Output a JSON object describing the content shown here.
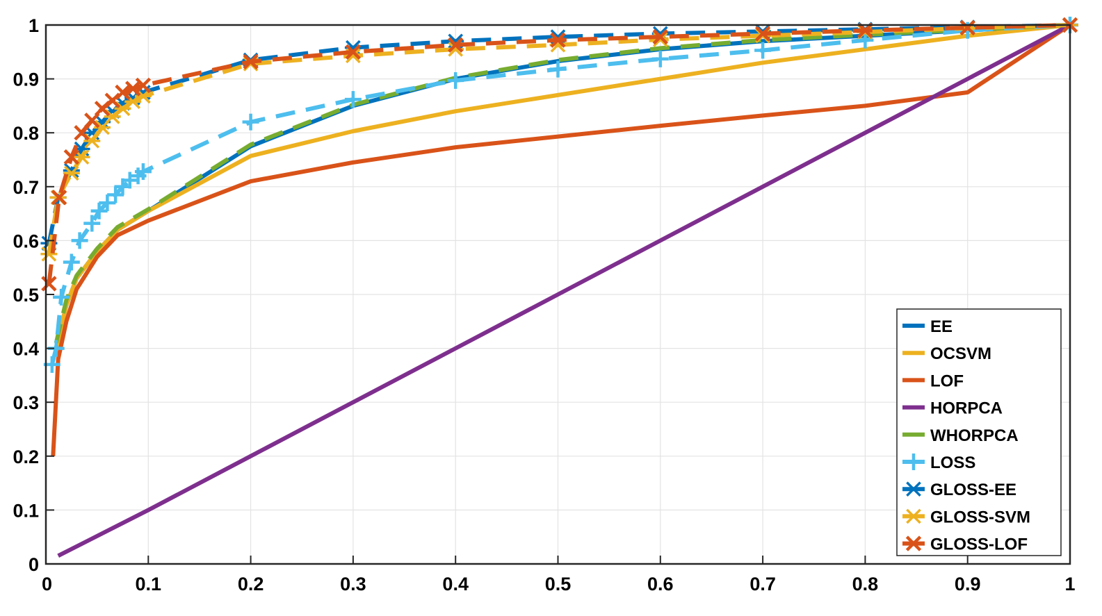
{
  "chart_data": {
    "type": "line",
    "title": "",
    "xlabel": "",
    "ylabel": "",
    "xlim": [
      0,
      1
    ],
    "ylim": [
      0,
      1
    ],
    "grid": true,
    "legend_position": "bottom-right",
    "x_ticks": [
      "0",
      "0.1",
      "0.2",
      "0.3",
      "0.4",
      "0.5",
      "0.6",
      "0.7",
      "0.8",
      "0.9",
      "1"
    ],
    "y_ticks": [
      "0",
      "0.1",
      "0.2",
      "0.3",
      "0.4",
      "0.5",
      "0.6",
      "0.7",
      "0.8",
      "0.9",
      "1"
    ],
    "series": [
      {
        "name": "EE",
        "color": "#0072BD",
        "style": "solid",
        "marker": "none",
        "points": [
          [
            0.01,
            0.4
          ],
          [
            0.02,
            0.48
          ],
          [
            0.03,
            0.53
          ],
          [
            0.05,
            0.58
          ],
          [
            0.07,
            0.62
          ],
          [
            0.1,
            0.655
          ],
          [
            0.2,
            0.775
          ],
          [
            0.3,
            0.85
          ],
          [
            0.4,
            0.9
          ],
          [
            0.5,
            0.933
          ],
          [
            0.6,
            0.955
          ],
          [
            0.7,
            0.97
          ],
          [
            0.8,
            0.98
          ],
          [
            0.9,
            0.99
          ],
          [
            1.0,
            1.0
          ]
        ]
      },
      {
        "name": "OCSVM",
        "color": "#EDB120",
        "style": "solid",
        "marker": "none",
        "points": [
          [
            0.01,
            0.4
          ],
          [
            0.02,
            0.48
          ],
          [
            0.03,
            0.53
          ],
          [
            0.05,
            0.58
          ],
          [
            0.07,
            0.62
          ],
          [
            0.1,
            0.655
          ],
          [
            0.2,
            0.757
          ],
          [
            0.3,
            0.803
          ],
          [
            0.4,
            0.84
          ],
          [
            0.5,
            0.87
          ],
          [
            0.6,
            0.9
          ],
          [
            0.7,
            0.93
          ],
          [
            0.8,
            0.955
          ],
          [
            0.9,
            0.98
          ],
          [
            1.0,
            1.0
          ]
        ]
      },
      {
        "name": "LOF",
        "color": "#D95319",
        "style": "solid",
        "marker": "none",
        "points": [
          [
            0.007,
            0.2
          ],
          [
            0.012,
            0.38
          ],
          [
            0.02,
            0.45
          ],
          [
            0.03,
            0.51
          ],
          [
            0.05,
            0.57
          ],
          [
            0.07,
            0.61
          ],
          [
            0.1,
            0.637
          ],
          [
            0.2,
            0.71
          ],
          [
            0.3,
            0.745
          ],
          [
            0.4,
            0.773
          ],
          [
            0.5,
            0.793
          ],
          [
            0.6,
            0.813
          ],
          [
            0.7,
            0.832
          ],
          [
            0.8,
            0.85
          ],
          [
            0.9,
            0.875
          ],
          [
            1.0,
            1.0
          ]
        ]
      },
      {
        "name": "HORPCA",
        "color": "#7E2F8E",
        "style": "solid",
        "marker": "none",
        "points": [
          [
            0.012,
            0.015
          ],
          [
            0.1,
            0.1
          ],
          [
            0.2,
            0.2
          ],
          [
            0.3,
            0.3
          ],
          [
            0.4,
            0.4
          ],
          [
            0.5,
            0.5
          ],
          [
            0.6,
            0.6
          ],
          [
            0.7,
            0.7
          ],
          [
            0.8,
            0.8
          ],
          [
            0.9,
            0.9
          ],
          [
            1.0,
            1.0
          ]
        ]
      },
      {
        "name": "WHORPCA",
        "color": "#77AC30",
        "style": "dashed",
        "marker": "none",
        "points": [
          [
            0.01,
            0.41
          ],
          [
            0.02,
            0.49
          ],
          [
            0.03,
            0.535
          ],
          [
            0.05,
            0.585
          ],
          [
            0.07,
            0.625
          ],
          [
            0.1,
            0.658
          ],
          [
            0.2,
            0.778
          ],
          [
            0.3,
            0.852
          ],
          [
            0.4,
            0.902
          ],
          [
            0.5,
            0.935
          ],
          [
            0.6,
            0.957
          ],
          [
            0.7,
            0.972
          ],
          [
            0.8,
            0.982
          ],
          [
            0.9,
            0.991
          ],
          [
            1.0,
            1.0
          ]
        ]
      },
      {
        "name": "LOSS",
        "color": "#4DBEEE",
        "style": "dashed",
        "marker": "plus",
        "points": [
          [
            0.006,
            0.37
          ],
          [
            0.01,
            0.4
          ],
          [
            0.015,
            0.495
          ],
          [
            0.025,
            0.56
          ],
          [
            0.033,
            0.6
          ],
          [
            0.045,
            0.632
          ],
          [
            0.052,
            0.655
          ],
          [
            0.06,
            0.67
          ],
          [
            0.068,
            0.685
          ],
          [
            0.075,
            0.7
          ],
          [
            0.082,
            0.712
          ],
          [
            0.09,
            0.72
          ],
          [
            0.095,
            0.728
          ],
          [
            0.2,
            0.82
          ],
          [
            0.3,
            0.862
          ],
          [
            0.4,
            0.897
          ],
          [
            0.5,
            0.918
          ],
          [
            0.6,
            0.937
          ],
          [
            0.7,
            0.953
          ],
          [
            0.8,
            0.972
          ],
          [
            0.9,
            0.99
          ],
          [
            1.0,
            1.0
          ]
        ]
      },
      {
        "name": "GLOSS-EE",
        "color": "#0072BD",
        "style": "dashed",
        "marker": "asterisk",
        "points": [
          [
            0.003,
            0.595
          ],
          [
            0.012,
            0.68
          ],
          [
            0.025,
            0.73
          ],
          [
            0.035,
            0.77
          ],
          [
            0.045,
            0.8
          ],
          [
            0.055,
            0.82
          ],
          [
            0.065,
            0.84
          ],
          [
            0.075,
            0.855
          ],
          [
            0.085,
            0.865
          ],
          [
            0.095,
            0.875
          ],
          [
            0.2,
            0.935
          ],
          [
            0.3,
            0.958
          ],
          [
            0.4,
            0.97
          ],
          [
            0.5,
            0.978
          ],
          [
            0.6,
            0.984
          ],
          [
            0.7,
            0.988
          ],
          [
            0.8,
            0.992
          ],
          [
            0.9,
            0.996
          ],
          [
            1.0,
            1.0
          ]
        ]
      },
      {
        "name": "GLOSS-SVM",
        "color": "#EDB120",
        "style": "dashed",
        "marker": "asterisk",
        "points": [
          [
            0.003,
            0.575
          ],
          [
            0.012,
            0.68
          ],
          [
            0.025,
            0.725
          ],
          [
            0.035,
            0.755
          ],
          [
            0.045,
            0.785
          ],
          [
            0.055,
            0.81
          ],
          [
            0.065,
            0.83
          ],
          [
            0.075,
            0.845
          ],
          [
            0.085,
            0.858
          ],
          [
            0.095,
            0.868
          ],
          [
            0.2,
            0.928
          ],
          [
            0.3,
            0.943
          ],
          [
            0.4,
            0.955
          ],
          [
            0.5,
            0.963
          ],
          [
            0.6,
            0.973
          ],
          [
            0.7,
            0.98
          ],
          [
            0.8,
            0.987
          ],
          [
            0.9,
            0.994
          ],
          [
            1.0,
            1.0
          ]
        ]
      },
      {
        "name": "GLOSS-LOF",
        "color": "#D95319",
        "style": "dashed",
        "marker": "x",
        "points": [
          [
            0.003,
            0.52
          ],
          [
            0.013,
            0.68
          ],
          [
            0.025,
            0.755
          ],
          [
            0.035,
            0.8
          ],
          [
            0.045,
            0.823
          ],
          [
            0.055,
            0.845
          ],
          [
            0.065,
            0.86
          ],
          [
            0.075,
            0.875
          ],
          [
            0.085,
            0.882
          ],
          [
            0.095,
            0.888
          ],
          [
            0.2,
            0.932
          ],
          [
            0.3,
            0.95
          ],
          [
            0.4,
            0.963
          ],
          [
            0.5,
            0.972
          ],
          [
            0.6,
            0.978
          ],
          [
            0.7,
            0.984
          ],
          [
            0.8,
            0.99
          ],
          [
            0.9,
            0.995
          ],
          [
            1.0,
            1.0
          ]
        ]
      }
    ]
  }
}
